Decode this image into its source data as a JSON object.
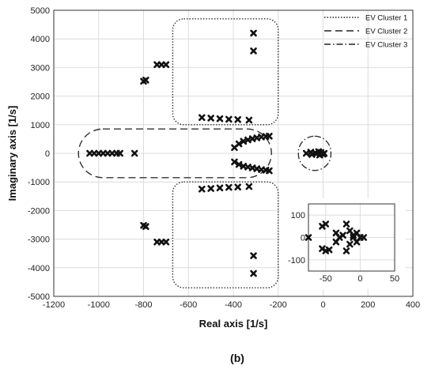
{
  "caption": "(b)",
  "chart_data": {
    "type": "scatter",
    "xlabel": "Real axis [1/s]",
    "ylabel": "Imaginary axis [1/s]",
    "xlim": [
      -1200,
      400
    ],
    "ylim": [
      -5000,
      5000
    ],
    "x_ticks": [
      -1200,
      -1000,
      -800,
      -600,
      -400,
      -200,
      0,
      200,
      400
    ],
    "y_ticks": [
      -5000,
      -4000,
      -3000,
      -2000,
      -1000,
      0,
      1000,
      2000,
      3000,
      4000,
      5000
    ],
    "grid": true,
    "marker": "x",
    "legend_position": "top-right",
    "legend": [
      {
        "label": "EV Cluster 1",
        "dash": "dotted"
      },
      {
        "label": "EV Cluster 2",
        "dash": "dashed"
      },
      {
        "label": "EV Cluster 3",
        "dash": "dashdot"
      }
    ],
    "points": [
      [
        -1040,
        0
      ],
      [
        -1020,
        0
      ],
      [
        -1000,
        0
      ],
      [
        -980,
        0
      ],
      [
        -960,
        0
      ],
      [
        -940,
        0
      ],
      [
        -920,
        0
      ],
      [
        -905,
        0
      ],
      [
        -840,
        0
      ],
      [
        -800,
        2520
      ],
      [
        -790,
        2560
      ],
      [
        -740,
        3100
      ],
      [
        -720,
        3100
      ],
      [
        -700,
        3100
      ],
      [
        -800,
        -2520
      ],
      [
        -790,
        -2560
      ],
      [
        -740,
        -3100
      ],
      [
        -720,
        -3100
      ],
      [
        -700,
        -3100
      ],
      [
        -540,
        1250
      ],
      [
        -500,
        1230
      ],
      [
        -460,
        1210
      ],
      [
        -420,
        1190
      ],
      [
        -380,
        1180
      ],
      [
        -330,
        1160
      ],
      [
        -540,
        -1250
      ],
      [
        -500,
        -1230
      ],
      [
        -460,
        -1210
      ],
      [
        -420,
        -1190
      ],
      [
        -380,
        -1180
      ],
      [
        -330,
        -1160
      ],
      [
        -310,
        4200
      ],
      [
        -310,
        3580
      ],
      [
        -310,
        -3580
      ],
      [
        -310,
        -4200
      ],
      [
        -395,
        200
      ],
      [
        -375,
        330
      ],
      [
        -355,
        420
      ],
      [
        -335,
        470
      ],
      [
        -315,
        510
      ],
      [
        -295,
        540
      ],
      [
        -275,
        570
      ],
      [
        -255,
        590
      ],
      [
        -240,
        600
      ],
      [
        -395,
        -300
      ],
      [
        -375,
        -390
      ],
      [
        -355,
        -450
      ],
      [
        -335,
        -480
      ],
      [
        -315,
        -510
      ],
      [
        -295,
        -540
      ],
      [
        -275,
        -570
      ],
      [
        -255,
        -590
      ],
      [
        -240,
        -610
      ],
      [
        -75,
        0
      ],
      [
        -55,
        40
      ],
      [
        -50,
        -40
      ],
      [
        -35,
        20
      ],
      [
        -30,
        -20
      ],
      [
        -20,
        60
      ],
      [
        -15,
        -60
      ],
      [
        -10,
        30
      ],
      [
        -10,
        0
      ],
      [
        0,
        -30
      ],
      [
        5,
        0
      ]
    ],
    "clusters": [
      {
        "label": "EV Cluster 1",
        "x_range": [
          -670,
          -200
        ],
        "y_range": [
          1000,
          4700
        ]
      },
      {
        "label": "EV Cluster 1",
        "x_range": [
          -670,
          -200
        ],
        "y_range": [
          -4700,
          -1000
        ]
      },
      {
        "label": "EV Cluster 2",
        "x_range": [
          -1090,
          -230
        ],
        "y_range": [
          -850,
          850
        ]
      },
      {
        "label": "EV Cluster 3",
        "x_range": [
          -110,
          35
        ],
        "y_range": [
          -600,
          600
        ]
      }
    ],
    "inset": {
      "xlim": [
        -75,
        50
      ],
      "ylim": [
        -150,
        150
      ],
      "x_ticks": [
        -50,
        0,
        50
      ],
      "y_ticks": [
        -100,
        0,
        100
      ],
      "points": [
        [
          -75,
          0
        ],
        [
          -55,
          50
        ],
        [
          -50,
          60
        ],
        [
          -55,
          -50
        ],
        [
          -50,
          -60
        ],
        [
          -45,
          -55
        ],
        [
          -35,
          20
        ],
        [
          -30,
          0
        ],
        [
          -35,
          -20
        ],
        [
          -25,
          10
        ],
        [
          -20,
          60
        ],
        [
          -20,
          -60
        ],
        [
          -15,
          30
        ],
        [
          -15,
          -30
        ],
        [
          -10,
          0
        ],
        [
          -5,
          20
        ],
        [
          -5,
          -20
        ],
        [
          5,
          0
        ],
        [
          0,
          0
        ],
        [
          -10,
          10
        ]
      ]
    }
  }
}
